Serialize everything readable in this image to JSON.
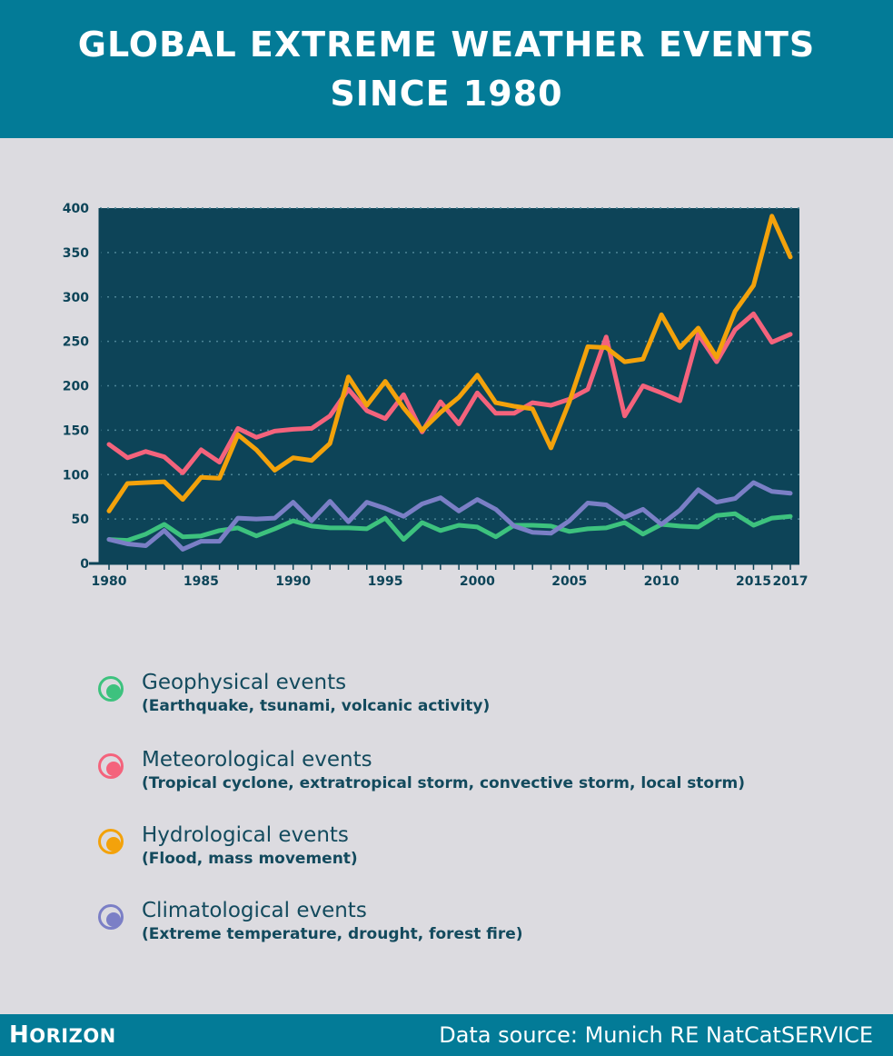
{
  "header": {
    "title_line1": "GLOBAL EXTREME WEATHER EVENTS",
    "title_line2": "SINCE 1980"
  },
  "colors": {
    "header_bg": "#037b97",
    "page_bg": "#dcdbe0",
    "plot_bg": "#0d4458",
    "geophysical": "#3dc27e",
    "meteorological": "#f4637c",
    "hydrological": "#f3a20b",
    "climatological": "#7b7fc6"
  },
  "chart_data": {
    "type": "line",
    "title": "GLOBAL EXTREME WEATHER EVENTS SINCE 1980",
    "xlabel": "",
    "ylabel": "",
    "ylim": [
      0,
      400
    ],
    "xlim": [
      1980,
      2017
    ],
    "yticks": [
      0,
      50,
      100,
      150,
      200,
      250,
      300,
      350,
      400
    ],
    "xticks": [
      1980,
      1985,
      1990,
      1995,
      2000,
      2005,
      2010,
      2015,
      2017
    ],
    "grid": "horizontal dotted",
    "legend_position": "bottom",
    "x": [
      1980,
      1981,
      1982,
      1983,
      1984,
      1985,
      1986,
      1987,
      1988,
      1989,
      1990,
      1991,
      1992,
      1993,
      1994,
      1995,
      1996,
      1997,
      1998,
      1999,
      2000,
      2001,
      2002,
      2003,
      2004,
      2005,
      2006,
      2007,
      2008,
      2009,
      2010,
      2011,
      2012,
      2013,
      2014,
      2015,
      2016,
      2017
    ],
    "series": [
      {
        "name": "Geophysical events",
        "color": "#3dc27e",
        "values": [
          27,
          26,
          33,
          44,
          30,
          31,
          37,
          40,
          31,
          39,
          48,
          42,
          40,
          40,
          39,
          51,
          27,
          46,
          37,
          43,
          41,
          30,
          43,
          43,
          42,
          36,
          39,
          40,
          46,
          33,
          44,
          42,
          41,
          54,
          56,
          43,
          51,
          53
        ]
      },
      {
        "name": "Meteorological events",
        "color": "#f4637c",
        "values": [
          134,
          119,
          126,
          120,
          102,
          128,
          114,
          152,
          142,
          149,
          151,
          152,
          166,
          196,
          172,
          163,
          190,
          148,
          182,
          157,
          192,
          169,
          169,
          181,
          178,
          185,
          196,
          255,
          166,
          200,
          192,
          183,
          258,
          227,
          263,
          281,
          249,
          258
        ]
      },
      {
        "name": "Hydrological events",
        "color": "#f3a20b",
        "values": [
          59,
          90,
          91,
          92,
          72,
          97,
          96,
          145,
          128,
          105,
          119,
          116,
          135,
          210,
          178,
          205,
          175,
          150,
          170,
          187,
          212,
          181,
          177,
          174,
          130,
          182,
          244,
          243,
          227,
          230,
          280,
          243,
          265,
          232,
          284,
          313,
          391,
          345
        ]
      },
      {
        "name": "Climatological events",
        "color": "#7b7fc6",
        "values": [
          27,
          22,
          20,
          37,
          16,
          25,
          25,
          51,
          50,
          51,
          69,
          48,
          70,
          47,
          69,
          62,
          53,
          67,
          74,
          59,
          72,
          61,
          42,
          35,
          34,
          48,
          68,
          66,
          52,
          61,
          44,
          60,
          83,
          69,
          73,
          91,
          81,
          79
        ]
      }
    ]
  },
  "legend": [
    {
      "name": "Geophysical events",
      "desc": "(Earthquake, tsunami, volcanic activity)"
    },
    {
      "name": "Meteorological events",
      "desc": "(Tropical cyclone, extratropical storm, convective storm, local storm)"
    },
    {
      "name": "Hydrological events",
      "desc": "(Flood, mass movement)"
    },
    {
      "name": "Climatological events",
      "desc": "(Extreme temperature, drought, forest fire)"
    }
  ],
  "footer": {
    "brand_first": "H",
    "brand_rest": "ORIZON",
    "source": "Data source: Munich RE NatCatSERVICE"
  }
}
